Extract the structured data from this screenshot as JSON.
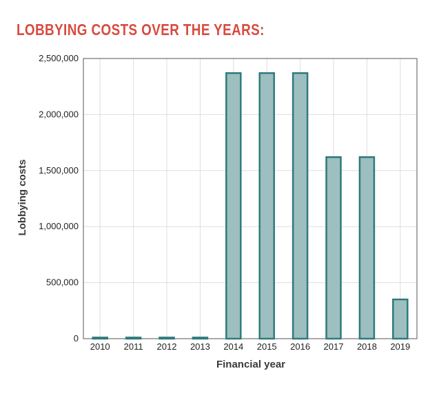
{
  "header": {
    "title": "LOBBYING COSTS OVER THE YEARS:"
  },
  "colors": {
    "title": "#d94b3f",
    "bar_fill": "#9dbfbf",
    "bar_stroke": "#2f7a7c",
    "grid": "#dddddd",
    "axis": "#555555"
  },
  "chart_data": {
    "type": "bar",
    "categories": [
      "2010",
      "2011",
      "2012",
      "2013",
      "2014",
      "2015",
      "2016",
      "2017",
      "2018",
      "2019"
    ],
    "values": [
      10000,
      10000,
      10000,
      10000,
      2370000,
      2370000,
      2370000,
      1620000,
      1620000,
      350000
    ],
    "xlabel": "Financial year",
    "ylabel": "Lobbying costs",
    "ylim": [
      0,
      2500000
    ],
    "yticks": [
      0,
      500000,
      1000000,
      1500000,
      2000000,
      2500000
    ],
    "ytick_labels": [
      "0",
      "500,000",
      "1,000,000",
      "1,500,000",
      "2,000,000",
      "2,500,000"
    ],
    "grid": true,
    "legend": "none"
  }
}
